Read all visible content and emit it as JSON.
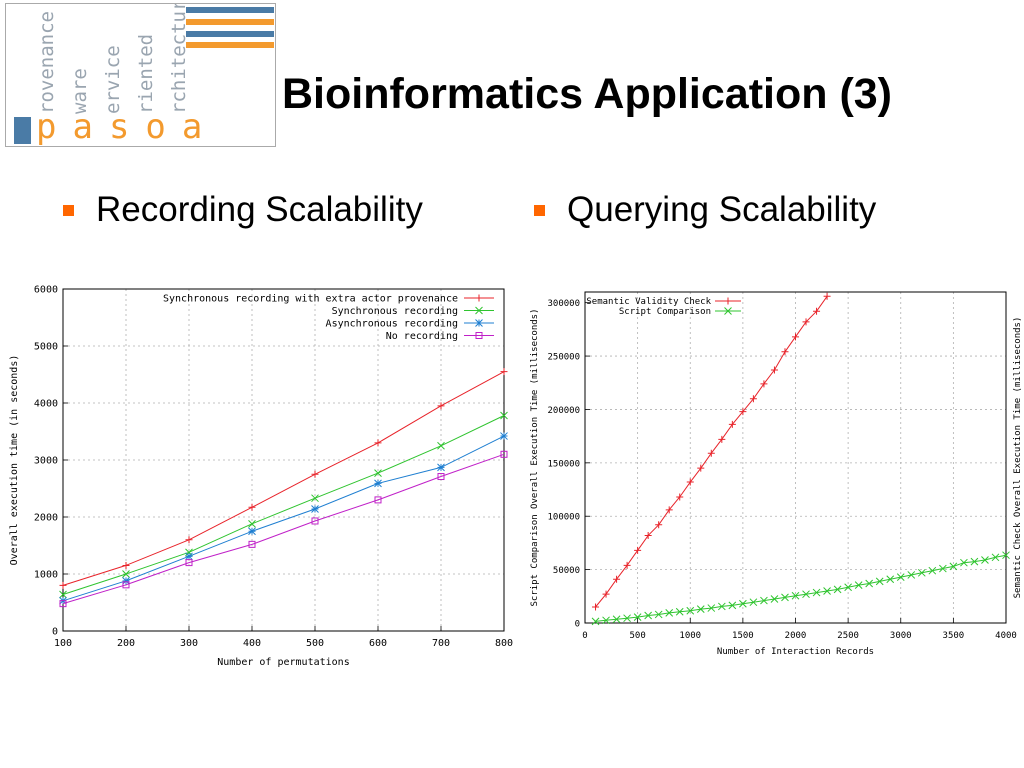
{
  "header": {
    "title": "Bioinformatics Application (3)"
  },
  "logo": {
    "words": [
      "rovenance",
      "ware",
      "ervice",
      "riented",
      "rchitecture"
    ],
    "brand": "pasoa",
    "colors": {
      "blue": "#4a7ba6",
      "orange": "#f39a2e",
      "gray": "#9aa5b0"
    }
  },
  "bullets": [
    {
      "label": "Recording Scalability"
    },
    {
      "label": "Querying Scalability"
    }
  ],
  "colors": {
    "bullet": "#ff6600"
  },
  "chart_data": [
    {
      "type": "line",
      "title": "",
      "xlabel": "Number of permutations",
      "ylabel": "Overall execution time (in seconds)",
      "xlim": [
        100,
        800
      ],
      "ylim": [
        0,
        6000
      ],
      "xticks": [
        100,
        200,
        300,
        400,
        500,
        600,
        700,
        800
      ],
      "yticks": [
        0,
        1000,
        2000,
        3000,
        4000,
        5000,
        6000
      ],
      "grid": true,
      "legend": "top-right",
      "x": [
        100,
        200,
        300,
        400,
        500,
        600,
        700,
        800
      ],
      "series": [
        {
          "name": "Synchronous recording with extra actor provenance",
          "color": "#e8232a",
          "marker": "plus",
          "values": [
            800,
            1150,
            1600,
            2170,
            2750,
            3300,
            3950,
            4550
          ]
        },
        {
          "name": "Synchronous recording",
          "color": "#2fc42f",
          "marker": "cross",
          "values": [
            640,
            1000,
            1380,
            1880,
            2330,
            2770,
            3250,
            3780
          ]
        },
        {
          "name": "Asynchronous recording",
          "color": "#1f7fd1",
          "marker": "star",
          "values": [
            530,
            880,
            1310,
            1750,
            2140,
            2590,
            2870,
            3420
          ]
        },
        {
          "name": "No recording",
          "color": "#c020c8",
          "marker": "square",
          "values": [
            480,
            810,
            1200,
            1520,
            1930,
            2300,
            2710,
            3100
          ]
        }
      ]
    },
    {
      "type": "line",
      "title": "",
      "xlabel": "Number of Interaction Records",
      "ylabel": "Script Comparison Overall Execution Time (milliseconds)",
      "y2label": "Semantic Check Overall Execution Time (milliseconds)",
      "xlim": [
        0,
        4000
      ],
      "ylim": [
        0,
        310000
      ],
      "xticks": [
        0,
        500,
        1000,
        1500,
        2000,
        2500,
        3000,
        3500,
        4000
      ],
      "yticks": [
        0,
        50000,
        100000,
        150000,
        200000,
        250000,
        300000
      ],
      "grid": true,
      "legend": "top-left",
      "series": [
        {
          "name": "Semantic Validity Check",
          "color": "#e8232a",
          "marker": "plus",
          "x": [
            100,
            200,
            300,
            400,
            500,
            600,
            700,
            800,
            900,
            1000,
            1100,
            1200,
            1300,
            1400,
            1500,
            1600,
            1700,
            1800,
            1900,
            2000,
            2100,
            2200,
            2300
          ],
          "values": [
            15000,
            27000,
            41000,
            54000,
            68000,
            82000,
            92000,
            106000,
            118000,
            132000,
            145000,
            159000,
            172000,
            186000,
            198000,
            210000,
            224000,
            237000,
            254000,
            268000,
            282000,
            292000,
            306000
          ]
        },
        {
          "name": "Script Comparison",
          "color": "#2fc42f",
          "marker": "cross",
          "x": [
            100,
            200,
            300,
            400,
            500,
            600,
            700,
            800,
            900,
            1000,
            1100,
            1200,
            1300,
            1400,
            1500,
            1600,
            1700,
            1800,
            1900,
            2000,
            2100,
            2200,
            2300,
            2400,
            2500,
            2600,
            2700,
            2800,
            2900,
            3000,
            3100,
            3200,
            3300,
            3400,
            3500,
            3600,
            3700,
            3800,
            3900,
            4000
          ],
          "values": [
            1500,
            2500,
            3500,
            4500,
            5500,
            7000,
            8000,
            9500,
            10500,
            11500,
            13000,
            14000,
            15500,
            16500,
            18000,
            19500,
            21000,
            22500,
            24000,
            25500,
            27000,
            28500,
            30000,
            31500,
            33500,
            35500,
            37000,
            39000,
            41000,
            43000,
            45000,
            47000,
            49000,
            51000,
            53000,
            56500,
            57500,
            59000,
            61500,
            63500
          ]
        }
      ]
    }
  ]
}
